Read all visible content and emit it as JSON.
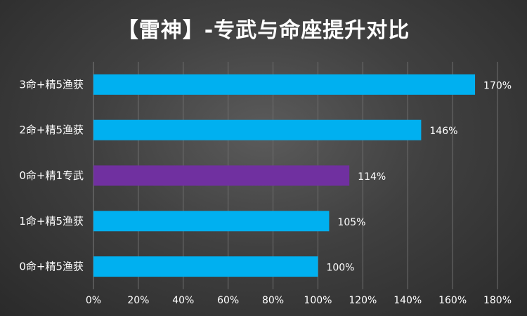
{
  "chart_data": {
    "type": "bar",
    "orientation": "horizontal",
    "title": "【雷神】-专武与命座提升对比",
    "categories": [
      "3命+精5渔获",
      "2命+精5渔获",
      "0命+精1专武",
      "1命+精5渔获",
      "0命+精5渔获"
    ],
    "values": [
      170,
      146,
      114,
      105,
      100
    ],
    "data_labels": [
      "170%",
      "146%",
      "114%",
      "105%",
      "100%"
    ],
    "bar_colors": [
      "#00b0f0",
      "#00b0f0",
      "#7030a0",
      "#00b0f0",
      "#00b0f0"
    ],
    "xlabel": "",
    "ylabel": "",
    "xlim": [
      0,
      180
    ],
    "xticks": [
      "0%",
      "20%",
      "40%",
      "60%",
      "80%",
      "100%",
      "120%",
      "140%",
      "160%",
      "180%"
    ],
    "grid": true,
    "legend": "none"
  },
  "colors": {
    "background": "#404040",
    "gridline": "#6f6f6f",
    "text": "#ffffff",
    "primary_bar": "#00b0f0",
    "highlight_bar": "#7030a0"
  }
}
